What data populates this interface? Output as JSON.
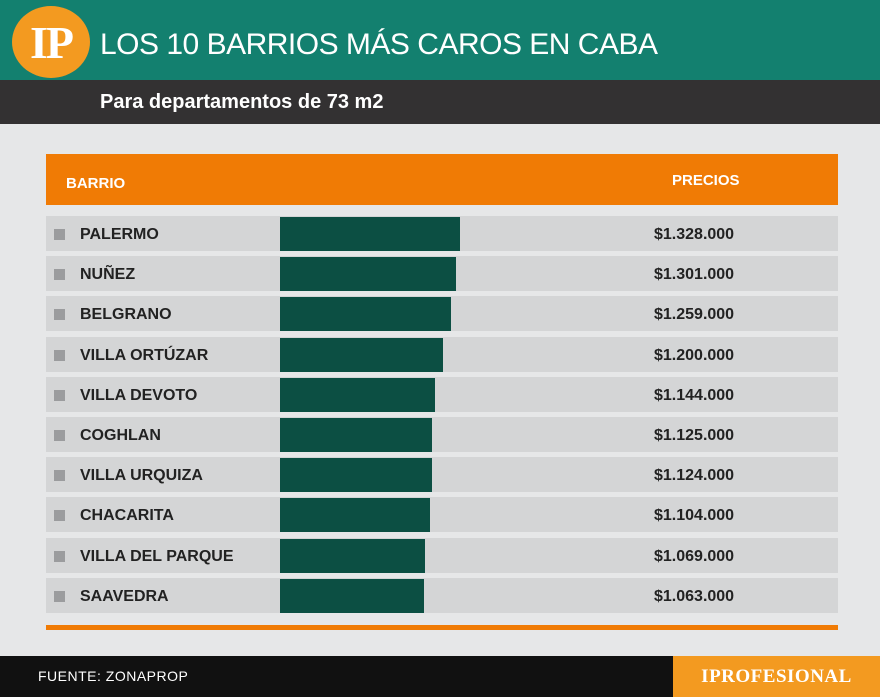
{
  "header": {
    "logo_text": "IP",
    "title": "LOS 10 BARRIOS MÁS CAROS EN CABA",
    "subtitle": "Para departamentos de 73 m2"
  },
  "colors": {
    "header_green": "#13806f",
    "accent_orange": "#f07b05",
    "logo_orange": "#f39a20",
    "bar_green": "#0c4f43",
    "sub_band": "#333132",
    "background": "#e6e7e8"
  },
  "chart_data": {
    "type": "bar",
    "orientation": "horizontal",
    "title": "LOS 10 BARRIOS MÁS CAROS EN CABA",
    "subtitle": "Para departamentos de 73 m2",
    "column_headers": [
      "BARRIO",
      "PRECIOS"
    ],
    "categories": [
      "PALERMO",
      "NUÑEZ",
      "BELGRANO",
      "VILLA ORTÚZAR",
      "VILLA DEVOTO",
      "COGHLAN",
      "VILLA URQUIZA",
      "CHACARITA",
      "VILLA DEL PARQUE",
      "SAAVEDRA"
    ],
    "values": [
      1328000,
      1301000,
      1259000,
      1200000,
      1144000,
      1125000,
      1124000,
      1104000,
      1069000,
      1063000
    ],
    "value_labels": [
      "$1.328.000",
      "$1.301.000",
      "$1.259.000",
      "$1.200.000",
      "$1.144.000",
      "$1.125.000",
      "$1.124.000",
      "$1.104.000",
      "$1.069.000",
      "$1.063.000"
    ],
    "xlim": [
      0,
      1328000
    ]
  },
  "footer": {
    "source": "FUENTE: ZONAPROP",
    "brand": "IPROFESIONAL"
  }
}
